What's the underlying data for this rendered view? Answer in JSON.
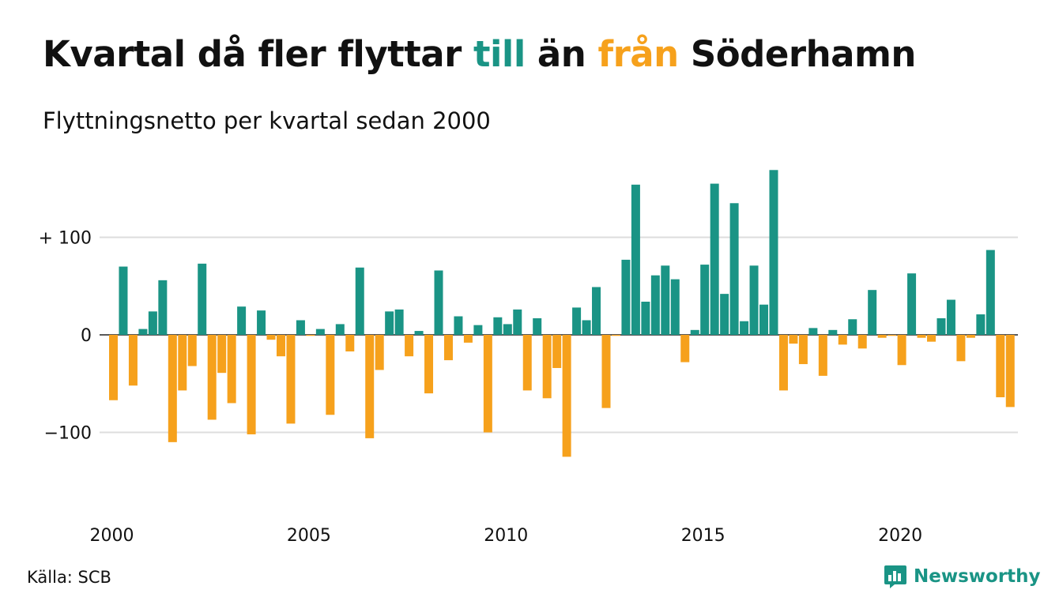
{
  "header": {
    "title_part1": "Kvartal då fler flyttar ",
    "title_till": "till",
    "title_part2": " än ",
    "title_fran": "från",
    "title_part3": " Söderhamn",
    "subtitle": "Flyttningsnetto per kvartal sedan 2000"
  },
  "footer": {
    "source": "Källa: SCB",
    "brand": "Newsworthy"
  },
  "colors": {
    "positive": "#1a9485",
    "negative": "#f6a11c",
    "grid": "#dddddd",
    "brand": "#1a9485"
  },
  "chart_data": {
    "type": "bar",
    "title": "Kvartal då fler flyttar till än från Söderhamn",
    "subtitle": "Flyttningsnetto per kvartal sedan 2000",
    "x_start": "2000 Q1",
    "x_tick_labels": [
      "2000",
      "2005",
      "2010",
      "2015",
      "2020"
    ],
    "y_tick_labels": [
      "+ 100",
      "0",
      "−100"
    ],
    "y_ticks": [
      100,
      0,
      -100
    ],
    "ylim": [
      -175,
      170
    ],
    "grid": true,
    "values": [
      -67,
      70,
      -52,
      6,
      24,
      56,
      -110,
      -57,
      -32,
      73,
      -87,
      -39,
      -70,
      29,
      -102,
      25,
      -5,
      -22,
      -91,
      15,
      -1,
      6,
      -82,
      11,
      -17,
      69,
      -106,
      -36,
      24,
      26,
      -22,
      4,
      -60,
      66,
      -26,
      19,
      -8,
      10,
      -100,
      18,
      11,
      26,
      -57,
      17,
      -65,
      -34,
      -125,
      28,
      15,
      49,
      -75,
      -1,
      77,
      154,
      34,
      61,
      71,
      57,
      -28,
      5,
      72,
      155,
      42,
      135,
      14,
      71,
      31,
      169,
      -57,
      -9,
      -30,
      7,
      -42,
      5,
      -10,
      16,
      -14,
      46,
      -3,
      -1,
      -31,
      63,
      -3,
      -7,
      17,
      36,
      -27,
      -3,
      21,
      87,
      -64,
      -74
    ]
  }
}
